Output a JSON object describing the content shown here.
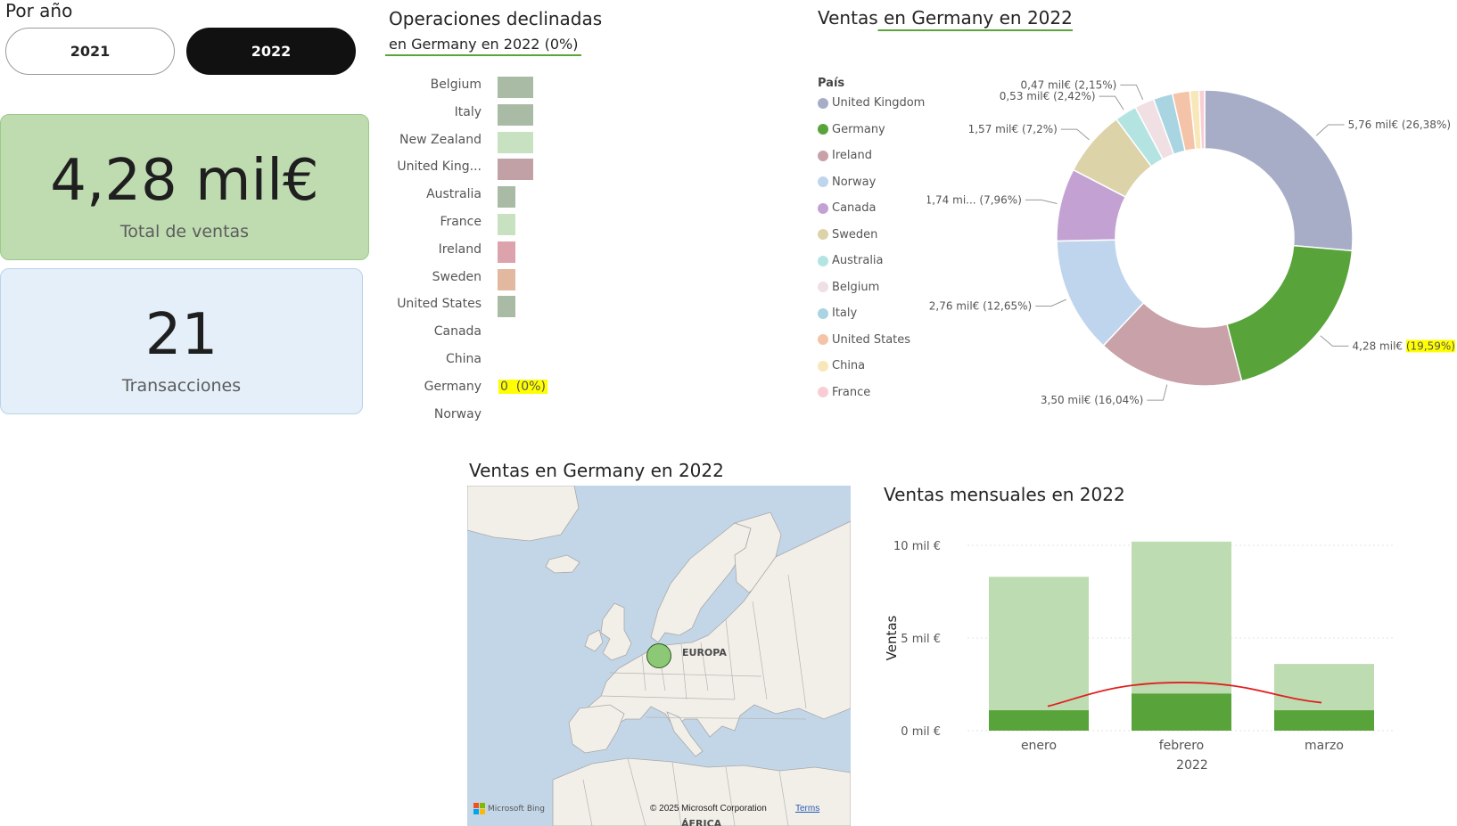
{
  "year_filter": {
    "title": "Por año",
    "options": [
      {
        "label": "2021",
        "selected": false
      },
      {
        "label": "2022",
        "selected": true
      }
    ]
  },
  "kpis": {
    "total_ventas": {
      "value": "4,28 mil€",
      "label": "Total de ventas",
      "color": "#bfdcb1"
    },
    "transacciones": {
      "value": "21",
      "label": "Transacciones",
      "color": "#e4eff9"
    }
  },
  "declined": {
    "title": "Operaciones declinadas",
    "subtitle": "en Germany en 2022 (0%)",
    "chart_data": {
      "type": "bar",
      "orientation": "horizontal",
      "categories": [
        "Belgium",
        "Italy",
        "New Zealand",
        "United King...",
        "Australia",
        "France",
        "Ireland",
        "Sweden",
        "United States",
        "Canada",
        "China",
        "Germany",
        "Norway"
      ],
      "values": [
        2,
        2,
        2,
        2,
        1,
        1,
        1,
        1,
        1,
        0,
        0,
        0,
        0
      ],
      "colors": [
        "#a9bba5",
        "#a9bba5",
        "#c8e2c1",
        "#c2a1a6",
        "#a9bba5",
        "#c8e2c1",
        "#dca3ad",
        "#e2b8a0",
        "#a9bba5",
        "#a9bba5",
        "#a9bba5",
        "#a9bba5",
        "#a9bba5"
      ],
      "data_label": {
        "category": "Germany",
        "text": "0  (0%)",
        "highlight": "#ffff00"
      }
    }
  },
  "donut": {
    "title": "Ventas en Germany en 2022",
    "legend_title": "País",
    "chart_data": {
      "type": "pie",
      "style": "donut",
      "categories": [
        "United Kingdom",
        "Germany",
        "Ireland",
        "Norway",
        "Canada",
        "Sweden",
        "Australia",
        "Belgium",
        "Italy",
        "United States",
        "China",
        "France"
      ],
      "values": [
        26.38,
        19.59,
        16.04,
        12.65,
        7.96,
        7.2,
        2.42,
        2.15,
        2.1,
        1.9,
        1.0,
        0.61
      ],
      "colors": [
        "#a7adc6",
        "#58a33a",
        "#c9a1a8",
        "#bfd5ee",
        "#c3a2d3",
        "#ddd3a8",
        "#b4e4e2",
        "#f0e0e3",
        "#a9d4e2",
        "#f5c3a7",
        "#f8e7b8",
        "#f9cdd3"
      ],
      "labels": [
        {
          "text": "5,76 mil€ (26,38%)",
          "category": "United Kingdom"
        },
        {
          "text": "4,28 mil€ ",
          "highlight": "(19,59%)",
          "category": "Germany"
        },
        {
          "text": "3,50 mil€ (16,04%)",
          "category": "Ireland"
        },
        {
          "text": "2,76 mil€ (12,65%)",
          "category": "Norway"
        },
        {
          "text": "1,74 mi... (7,96%)",
          "category": "Canada"
        },
        {
          "text": "1,57 mil€ (7,2%)",
          "category": "Sweden"
        },
        {
          "text": "0,53 mil€ (2,42%)",
          "category": "Australia"
        },
        {
          "text": "0,47 mil€ (2,15%)",
          "category": "Belgium"
        }
      ]
    }
  },
  "map": {
    "title": "Ventas en Germany en 2022",
    "region_label": "EUROPA",
    "region_label_2": "ÁFRICA",
    "bing_label": "Microsoft Bing",
    "copyright": "© 2025 Microsoft Corporation",
    "terms": "Terms",
    "marker_color": "#8cc876"
  },
  "monthly": {
    "title": "Ventas mensuales en 2022",
    "chart_data": {
      "type": "bar",
      "ylabel": "Ventas",
      "xlabel": "2022",
      "ylim": [
        0,
        10
      ],
      "y_ticks": [
        "0 mil €",
        "5 mil €",
        "10 mil €"
      ],
      "categories": [
        "enero",
        "febrero",
        "marzo"
      ],
      "series": [
        {
          "values": [
            8.3,
            10.2,
            3.6
          ],
          "color": "#bedcb1"
        },
        {
          "values": [
            1.1,
            2.0,
            1.1
          ],
          "color": "#58a33a"
        }
      ],
      "trend_line": {
        "values": [
          1.7,
          2.6,
          1.8
        ],
        "color": "#e02020"
      },
      "grid": true
    }
  }
}
